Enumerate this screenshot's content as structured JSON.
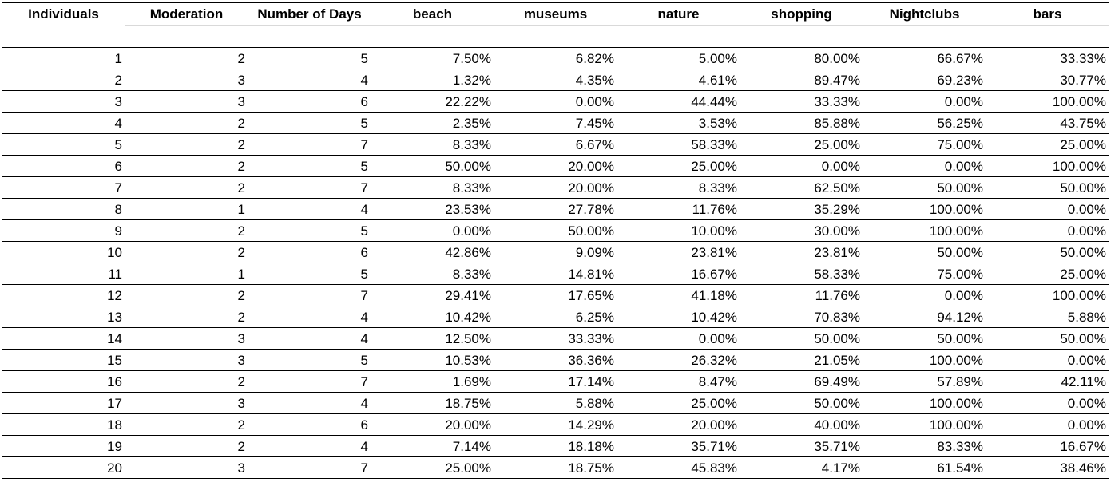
{
  "columns": [
    "Individuals",
    "Moderation",
    "Number of Days",
    "beach",
    "museums",
    "nature",
    "shopping",
    "Nightclubs",
    "bars"
  ],
  "rows": [
    [
      "1",
      "2",
      "5",
      "7.50%",
      "6.82%",
      "5.00%",
      "80.00%",
      "66.67%",
      "33.33%"
    ],
    [
      "2",
      "3",
      "4",
      "1.32%",
      "4.35%",
      "4.61%",
      "89.47%",
      "69.23%",
      "30.77%"
    ],
    [
      "3",
      "3",
      "6",
      "22.22%",
      "0.00%",
      "44.44%",
      "33.33%",
      "0.00%",
      "100.00%"
    ],
    [
      "4",
      "2",
      "5",
      "2.35%",
      "7.45%",
      "3.53%",
      "85.88%",
      "56.25%",
      "43.75%"
    ],
    [
      "5",
      "2",
      "7",
      "8.33%",
      "6.67%",
      "58.33%",
      "25.00%",
      "75.00%",
      "25.00%"
    ],
    [
      "6",
      "2",
      "5",
      "50.00%",
      "20.00%",
      "25.00%",
      "0.00%",
      "0.00%",
      "100.00%"
    ],
    [
      "7",
      "2",
      "7",
      "8.33%",
      "20.00%",
      "8.33%",
      "62.50%",
      "50.00%",
      "50.00%"
    ],
    [
      "8",
      "1",
      "4",
      "23.53%",
      "27.78%",
      "11.76%",
      "35.29%",
      "100.00%",
      "0.00%"
    ],
    [
      "9",
      "2",
      "5",
      "0.00%",
      "50.00%",
      "10.00%",
      "30.00%",
      "100.00%",
      "0.00%"
    ],
    [
      "10",
      "2",
      "6",
      "42.86%",
      "9.09%",
      "23.81%",
      "23.81%",
      "50.00%",
      "50.00%"
    ],
    [
      "11",
      "1",
      "5",
      "8.33%",
      "14.81%",
      "16.67%",
      "58.33%",
      "75.00%",
      "25.00%"
    ],
    [
      "12",
      "2",
      "7",
      "29.41%",
      "17.65%",
      "41.18%",
      "11.76%",
      "0.00%",
      "100.00%"
    ],
    [
      "13",
      "2",
      "4",
      "10.42%",
      "6.25%",
      "10.42%",
      "70.83%",
      "94.12%",
      "5.88%"
    ],
    [
      "14",
      "3",
      "4",
      "12.50%",
      "33.33%",
      "0.00%",
      "50.00%",
      "50.00%",
      "50.00%"
    ],
    [
      "15",
      "3",
      "5",
      "10.53%",
      "36.36%",
      "26.32%",
      "21.05%",
      "100.00%",
      "0.00%"
    ],
    [
      "16",
      "2",
      "7",
      "1.69%",
      "17.14%",
      "8.47%",
      "69.49%",
      "57.89%",
      "42.11%"
    ],
    [
      "17",
      "3",
      "4",
      "18.75%",
      "5.88%",
      "25.00%",
      "50.00%",
      "100.00%",
      "0.00%"
    ],
    [
      "18",
      "2",
      "6",
      "20.00%",
      "14.29%",
      "20.00%",
      "40.00%",
      "100.00%",
      "0.00%"
    ],
    [
      "19",
      "2",
      "4",
      "7.14%",
      "18.18%",
      "35.71%",
      "35.71%",
      "83.33%",
      "16.67%"
    ],
    [
      "20",
      "3",
      "7",
      "25.00%",
      "18.75%",
      "45.83%",
      "4.17%",
      "61.54%",
      "38.46%"
    ]
  ]
}
